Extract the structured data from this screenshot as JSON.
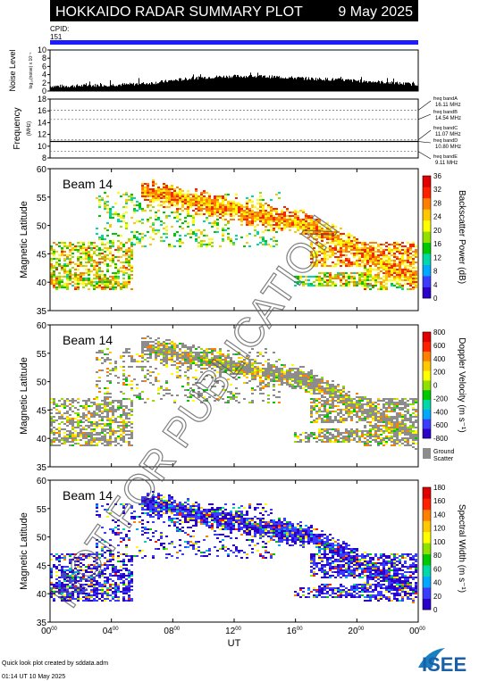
{
  "header": {
    "title": "HOKKAIDO RADAR SUMMARY PLOT",
    "date": "9 May 2025",
    "cpid_label": "CPID:",
    "cpid_value": "151"
  },
  "footer": {
    "credit": "Quick look plot created by sddata.adm",
    "created": "01:14 UT 10 May 2025",
    "logo_text": "ISEE"
  },
  "watermark": "NOT FOR PUBLICATION",
  "colors": {
    "cpid_bar": "#1c1cff",
    "ground_scatter": "#8c8c8c",
    "scale": [
      "#2b00c8",
      "#3c3cff",
      "#00a8ff",
      "#00d8a8",
      "#00c800",
      "#90e000",
      "#ffff00",
      "#ffc800",
      "#ff8000",
      "#ff2000",
      "#e00000"
    ]
  },
  "chart_data": [
    {
      "type": "area",
      "name": "noise",
      "ylabel": "Noise Level",
      "ylabel_sub": "log₁₀(noise) x 10⁻¹",
      "ylim": [
        0,
        10
      ],
      "yticks": [
        "0",
        "2",
        "4",
        "6",
        "8",
        "10"
      ],
      "x": [
        0,
        1,
        2,
        3,
        4,
        5,
        6,
        7,
        8,
        9,
        10,
        11,
        12,
        13,
        14,
        15,
        16,
        17,
        18,
        19,
        20,
        21,
        22,
        23,
        24
      ],
      "values": [
        1.2,
        1.2,
        1.3,
        1.4,
        1.5,
        1.6,
        1.8,
        2.1,
        2.6,
        3.0,
        3.3,
        3.5,
        3.6,
        3.6,
        3.5,
        3.4,
        3.2,
        3.0,
        2.9,
        2.7,
        2.5,
        2.3,
        2.1,
        1.8,
        1.6
      ]
    },
    {
      "type": "line",
      "name": "frequency",
      "ylabel": "Frequency",
      "yunit": "(MHz)",
      "ylim": [
        8,
        18
      ],
      "yticks": [
        "8",
        "10",
        "12",
        "14",
        "16",
        "18"
      ],
      "bands": [
        {
          "label": "freq bandA",
          "freq": "16.11 MHz",
          "value": 16.11
        },
        {
          "label": "freq bandB",
          "freq": "14.54 MHz",
          "value": 14.54
        },
        {
          "label": "freq bandC",
          "freq": "11.07 MHz",
          "value": 11.07
        },
        {
          "label": "freq bandD",
          "freq": "10.80 MHz",
          "value": 10.8
        },
        {
          "label": "freq bandE",
          "freq": "9.11 MHz",
          "value": 9.11
        }
      ],
      "series": [
        {
          "value": 10.8
        }
      ]
    },
    {
      "type": "heatmap",
      "name": "power",
      "beam": "Beam 14",
      "ylabel": "Magnetic Latitude",
      "ylim": [
        35,
        60
      ],
      "yticks": [
        "35",
        "40",
        "45",
        "50",
        "55",
        "60"
      ],
      "colorbar_label": "Backscatter Power (dB)",
      "colorbar_range": [
        0,
        36
      ],
      "colorbar_ticks": [
        "0",
        "4",
        "8",
        "12",
        "16",
        "20",
        "24",
        "28",
        "32",
        "36"
      ],
      "mode": "power"
    },
    {
      "type": "heatmap",
      "name": "velocity",
      "beam": "Beam 14",
      "ylabel": "Magnetic Latitude",
      "ylim": [
        35,
        60
      ],
      "yticks": [
        "35",
        "40",
        "45",
        "50",
        "55",
        "60"
      ],
      "colorbar_label": "Doppler Velocity (m s⁻¹)",
      "colorbar_range": [
        -800,
        800
      ],
      "colorbar_ticks": [
        "-800",
        "-600",
        "-400",
        "-200",
        "0",
        "200",
        "400",
        "600",
        "800"
      ],
      "ground_scatter_label": "Ground Scatter",
      "mode": "velocity"
    },
    {
      "type": "heatmap",
      "name": "width",
      "beam": "Beam 14",
      "ylabel": "Magnetic Latitude",
      "ylim": [
        35,
        60
      ],
      "yticks": [
        "35",
        "40",
        "45",
        "50",
        "55",
        "60"
      ],
      "colorbar_label": "Spectral Width (m s⁻¹)",
      "colorbar_range": [
        0,
        180
      ],
      "colorbar_ticks": [
        "0",
        "20",
        "40",
        "60",
        "80",
        "100",
        "120",
        "140",
        "160",
        "180"
      ],
      "mode": "width"
    }
  ],
  "xaxis": {
    "label": "UT",
    "range": [
      0,
      24
    ],
    "ticks": [
      {
        "h": "00",
        "m": "00",
        "v": 0
      },
      {
        "h": "04",
        "m": "00",
        "v": 4
      },
      {
        "h": "08",
        "m": "00",
        "v": 8
      },
      {
        "h": "12",
        "m": "00",
        "v": 12
      },
      {
        "h": "16",
        "m": "00",
        "v": 16
      },
      {
        "h": "20",
        "m": "00",
        "v": 20
      },
      {
        "h": "00",
        "m": "00",
        "v": 24
      }
    ]
  }
}
